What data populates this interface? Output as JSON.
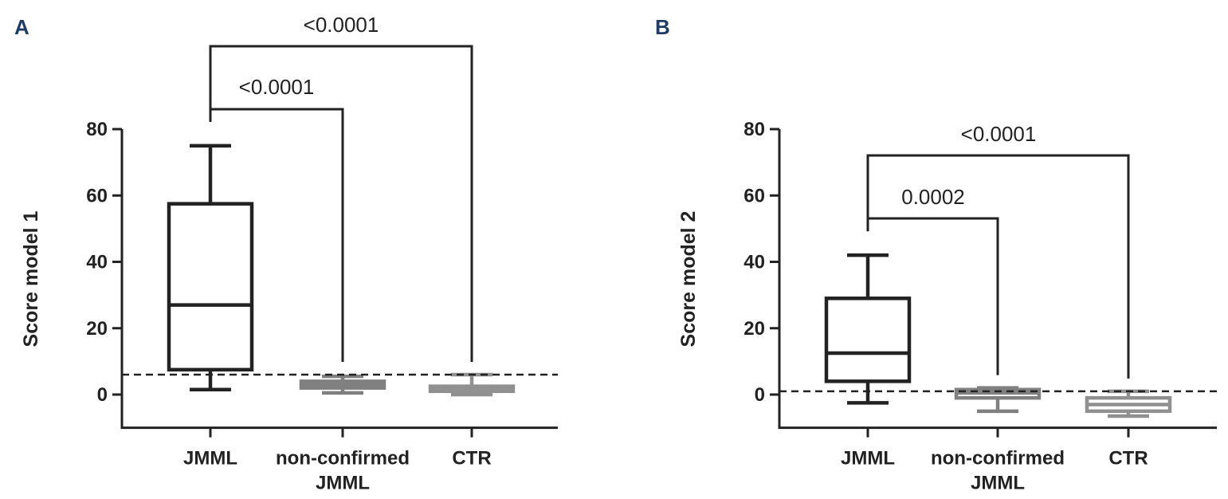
{
  "chart_data": [
    {
      "panel": "A",
      "type": "box",
      "ylabel": "Score model  1",
      "xlabel": "",
      "ylim": [
        -10,
        80
      ],
      "yticks": [
        0,
        20,
        40,
        60,
        80
      ],
      "categories": [
        "JMML",
        "non-confirmed\nJMML",
        "CTR"
      ],
      "category_lines": [
        [
          "JMML"
        ],
        [
          "non-confirmed",
          "JMML"
        ],
        [
          "CTR"
        ]
      ],
      "series": [
        {
          "name": "JMML",
          "min": 1.5,
          "q1": 7.5,
          "median": 27,
          "q3": 57.5,
          "max": 75,
          "color": "#222222"
        },
        {
          "name": "non-confirmed JMML",
          "min": 0.5,
          "q1": 2,
          "median": 3,
          "q3": 4,
          "max": 5.5,
          "color": "#808080"
        },
        {
          "name": "CTR",
          "min": 0,
          "q1": 1,
          "median": 2,
          "q3": 2.5,
          "max": 6,
          "color": "#909090"
        }
      ],
      "threshold": 6,
      "comparisons": [
        {
          "from": 0,
          "to": 1,
          "p": "<0.0001"
        },
        {
          "from": 0,
          "to": 2,
          "p": "<0.0001"
        }
      ]
    },
    {
      "panel": "B",
      "type": "box",
      "ylabel": "Score model 2",
      "xlabel": "",
      "ylim": [
        -10,
        80
      ],
      "yticks": [
        0,
        20,
        40,
        60,
        80
      ],
      "categories": [
        "JMML",
        "non-confirmed\nJMML",
        "CTR"
      ],
      "category_lines": [
        [
          "JMML"
        ],
        [
          "non-confirmed",
          "JMML"
        ],
        [
          "CTR"
        ]
      ],
      "series": [
        {
          "name": "JMML",
          "min": -2.5,
          "q1": 4,
          "median": 12.5,
          "q3": 29,
          "max": 42,
          "color": "#222222"
        },
        {
          "name": "non-confirmed JMML",
          "min": -5,
          "q1": -1,
          "median": 0.5,
          "q3": 1.5,
          "max": 2,
          "color": "#808080"
        },
        {
          "name": "CTR",
          "min": -6.5,
          "q1": -5,
          "median": -3,
          "q3": -1,
          "max": 1,
          "color": "#909090"
        }
      ],
      "threshold": 1,
      "comparisons": [
        {
          "from": 0,
          "to": 1,
          "p": "0.0002"
        },
        {
          "from": 0,
          "to": 2,
          "p": "<0.0001"
        }
      ]
    }
  ]
}
